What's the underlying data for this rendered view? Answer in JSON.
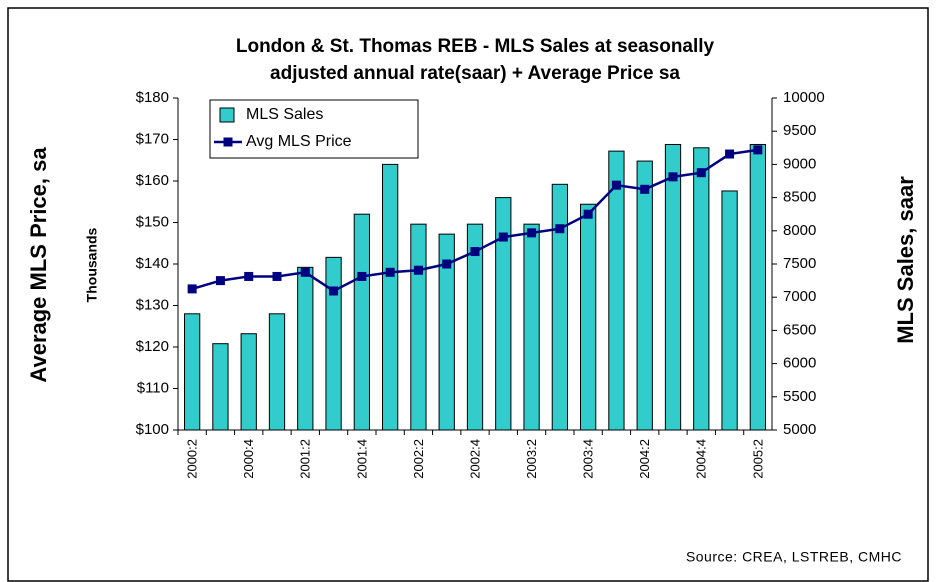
{
  "chart_data": {
    "type": "bar_line",
    "title": [
      "London & St. Thomas REB - MLS Sales at seasonally",
      "adjusted annual rate(saar) + Average Price sa"
    ],
    "y_label": "Average MLS Price, sa",
    "y_unit_label": "Thousands",
    "y2_label": "MLS Sales, saar",
    "source": "Source: CREA, LSTREB, CMHC",
    "categories": [
      "2000:2",
      null,
      "2000:4",
      null,
      "2001:2",
      null,
      "2001:4",
      null,
      "2002:2",
      null,
      "2002:4",
      null,
      "2003:2",
      null,
      "2003:4",
      null,
      "2004:2",
      null,
      "2004:4",
      null,
      "2005:2"
    ],
    "series": [
      {
        "name": "MLS Sales",
        "type": "bar",
        "axis": "y2",
        "color": "#33cccc",
        "values": [
          6750,
          6300,
          6450,
          6750,
          7450,
          7600,
          8250,
          9000,
          8100,
          7950,
          8100,
          8500,
          8100,
          8700,
          8400,
          9200,
          9050,
          9300,
          9250,
          8600,
          9300
        ]
      },
      {
        "name": "Avg MLS Price",
        "type": "line",
        "axis": "y",
        "color": "#000080",
        "values": [
          134,
          136,
          137,
          137,
          138,
          133.5,
          137,
          138,
          138.5,
          140,
          143,
          146.5,
          147.5,
          148.5,
          152,
          159,
          158,
          161,
          162,
          166.5,
          167.5
        ]
      }
    ],
    "ylim": [
      100,
      180
    ],
    "yticks": [
      {
        "value": 100,
        "label": "$100"
      },
      {
        "value": 110,
        "label": "$110"
      },
      {
        "value": 120,
        "label": "$120"
      },
      {
        "value": 130,
        "label": "$130"
      },
      {
        "value": 140,
        "label": "$140"
      },
      {
        "value": 150,
        "label": "$150"
      },
      {
        "value": 160,
        "label": "$160"
      },
      {
        "value": 170,
        "label": "$170"
      },
      {
        "value": 180,
        "label": "$180"
      }
    ],
    "y2lim": [
      5000,
      10000
    ],
    "y2ticks": [
      5000,
      5500,
      6000,
      6500,
      7000,
      7500,
      8000,
      8500,
      9000,
      9500,
      10000
    ],
    "grid": false,
    "legend": "top-left"
  }
}
